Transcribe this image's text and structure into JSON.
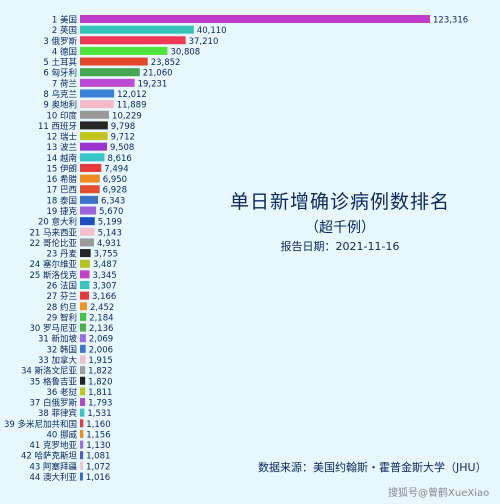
{
  "chart_data": {
    "type": "bar",
    "orientation": "horizontal",
    "title": "单日新增确诊病例数排名",
    "subtitle": "（超千例）",
    "date_line": "报告日期：2021-11-16",
    "source": "数据来源：美国约翰斯・霍普金斯大学（JHU）",
    "ranks": [
      "1",
      "2",
      "3",
      "4",
      "5",
      "6",
      "7",
      "8",
      "9",
      "10",
      "11",
      "12",
      "13",
      "14",
      "15",
      "16",
      "17",
      "18",
      "19",
      "20",
      "21",
      "22",
      "23",
      "24",
      "25",
      "26",
      "27",
      "28",
      "29",
      "30",
      "31",
      "32",
      "33",
      "34",
      "35",
      "36",
      "37",
      "38",
      "39",
      "40",
      "41",
      "42",
      "43",
      "44"
    ],
    "categories": [
      "美国",
      "英国",
      "俄罗斯",
      "德国",
      "土耳其",
      "匈牙利",
      "荷兰",
      "乌克兰",
      "奥地利",
      "印度",
      "西班牙",
      "瑞士",
      "波兰",
      "越南",
      "伊朗",
      "希腊",
      "巴西",
      "泰国",
      "捷克",
      "意大利",
      "马来西亚",
      "哥伦比亚",
      "丹麦",
      "塞尔维亚",
      "斯洛伐克",
      "法国",
      "芬兰",
      "约旦",
      "智利",
      "罗马尼亚",
      "新加坡",
      "韩国",
      "加拿大",
      "斯洛文尼亚",
      "格鲁吉亚",
      "老挝",
      "白俄罗斯",
      "菲律宾",
      "多米尼加共和国",
      "挪威",
      "克罗地亚",
      "哈萨克斯坦",
      "阿塞拜疆",
      "澳大利亚"
    ],
    "values": [
      123316,
      40110,
      37210,
      30808,
      23852,
      21060,
      19231,
      12012,
      11889,
      10229,
      9798,
      9712,
      9508,
      8616,
      7494,
      6950,
      6928,
      6343,
      5670,
      5199,
      5143,
      4931,
      3755,
      3487,
      3345,
      3307,
      3166,
      2452,
      2184,
      2136,
      2069,
      2006,
      1915,
      1822,
      1820,
      1811,
      1793,
      1531,
      1160,
      1156,
      1130,
      1081,
      1072,
      1016
    ],
    "value_labels": [
      "123,316",
      "40,110",
      "37,210",
      "30,808",
      "23,852",
      "21,060",
      "19,231",
      "12,012",
      "11,889",
      "10,229",
      "9,798",
      "9,712",
      "9,508",
      "8,616",
      "7,494",
      "6,950",
      "6,928",
      "6,343",
      "5,670",
      "5,199",
      "5,143",
      "4,931",
      "3,755",
      "3,487",
      "3,345",
      "3,307",
      "3,166",
      "2,452",
      "2,184",
      "2,136",
      "2,069",
      "2,006",
      "1,915",
      "1,822",
      "1,820",
      "1,811",
      "1,793",
      "1,531",
      "1,160",
      "1,156",
      "1,130",
      "1,081",
      "1,072",
      "1,016"
    ],
    "colors": [
      "#c03ccc",
      "#33c3b8",
      "#ef3a56",
      "#4ee43a",
      "#e3472c",
      "#44a852",
      "#bd4ad6",
      "#3a82d8",
      "#f4b9c8",
      "#9a9a9a",
      "#262626",
      "#c3c41e",
      "#9d35cf",
      "#36c5c9",
      "#e83a3c",
      "#f08b22",
      "#e24d2c",
      "#3c73c8",
      "#9b62df",
      "#1e4fc0",
      "#f7c0d0",
      "#9a9a9a",
      "#242424",
      "#b8c01f",
      "#c341c8",
      "#37c5bf",
      "#e8383e",
      "#f09620",
      "#44c244",
      "#4cb04c",
      "#9c6ae0",
      "#3a76cc",
      "#f2bccc",
      "#9e9e9e",
      "#222222",
      "#bfc71f",
      "#b04ad2",
      "#39c4c4",
      "#e43a42",
      "#f08c20",
      "#9a70e0",
      "#4b5cc8",
      "#f4c2ce",
      "#3a6cc6"
    ],
    "xlim": [
      0,
      123316
    ],
    "watermark": "搜狐号@曾鹤XueXiao"
  }
}
